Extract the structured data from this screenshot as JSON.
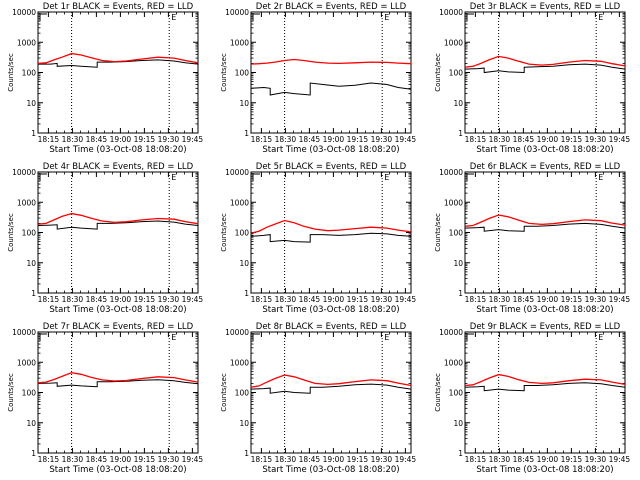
{
  "chart_data": [
    {
      "type": "line",
      "title": "Det 1r BLACK = Events, RED = LLD",
      "xlabel": "Start Time (03-Oct-08 18:08:20)",
      "ylabel": "Counts/sec",
      "x_ticks": [
        "18:15",
        "18:30",
        "18:45",
        "19:00",
        "19:15",
        "19:30",
        "19:45"
      ],
      "y_ticks": [
        "1",
        "10",
        "100",
        "1000",
        "10000"
      ],
      "ylim": [
        1,
        10000
      ],
      "xlim_minutes": [
        0,
        100
      ],
      "markers": [
        {
          "label": "E",
          "minute": 82
        }
      ],
      "vlines_minutes": [
        21,
        82
      ],
      "series": [
        {
          "name": "Events",
          "color": "#000000",
          "x": [
            0,
            8,
            12,
            12,
            21,
            27,
            37,
            37,
            45,
            55,
            65,
            75,
            85,
            92,
            100
          ],
          "y": [
            190,
            190,
            200,
            160,
            170,
            160,
            150,
            220,
            220,
            230,
            250,
            260,
            240,
            210,
            190
          ]
        },
        {
          "name": "LLD",
          "color": "#ff0000",
          "x": [
            0,
            5,
            10,
            15,
            21,
            27,
            33,
            40,
            48,
            55,
            65,
            75,
            85,
            92,
            100
          ],
          "y": [
            200,
            210,
            260,
            320,
            420,
            380,
            310,
            250,
            230,
            240,
            280,
            320,
            300,
            250,
            210
          ]
        }
      ]
    },
    {
      "type": "line",
      "title": "Det 2r BLACK = Events, RED = LLD",
      "xlabel": "Start Time (03-Oct-08 18:08:20)",
      "ylabel": "Counts/sec",
      "x_ticks": [
        "18:15",
        "18:30",
        "18:45",
        "19:00",
        "19:15",
        "19:30",
        "19:45"
      ],
      "y_ticks": [
        "1",
        "10",
        "100",
        "1000",
        "10000"
      ],
      "ylim": [
        1,
        10000
      ],
      "xlim_minutes": [
        0,
        100
      ],
      "markers": [
        {
          "label": "E",
          "minute": 82
        }
      ],
      "vlines_minutes": [
        21,
        82
      ],
      "series": [
        {
          "name": "Events",
          "color": "#000000",
          "x": [
            0,
            8,
            12,
            12,
            21,
            27,
            37,
            37,
            45,
            55,
            65,
            75,
            85,
            92,
            100
          ],
          "y": [
            30,
            32,
            30,
            18,
            22,
            20,
            18,
            45,
            40,
            35,
            38,
            45,
            40,
            32,
            28
          ]
        },
        {
          "name": "LLD",
          "color": "#ff0000",
          "x": [
            0,
            5,
            10,
            15,
            21,
            27,
            33,
            40,
            48,
            55,
            65,
            75,
            85,
            92,
            100
          ],
          "y": [
            190,
            195,
            205,
            220,
            250,
            270,
            250,
            220,
            205,
            200,
            210,
            220,
            215,
            205,
            195
          ]
        }
      ]
    },
    {
      "type": "line",
      "title": "Det 3r BLACK = Events, RED = LLD",
      "xlabel": "Start Time (03-Oct-08 18:08:20)",
      "ylabel": "Counts/sec",
      "x_ticks": [
        "18:15",
        "18:30",
        "18:45",
        "19:00",
        "19:15",
        "19:30",
        "19:45"
      ],
      "y_ticks": [
        "1",
        "10",
        "100",
        "1000",
        "10000"
      ],
      "ylim": [
        1,
        10000
      ],
      "xlim_minutes": [
        0,
        100
      ],
      "markers": [
        {
          "label": "E",
          "minute": 82
        }
      ],
      "vlines_minutes": [
        21,
        82
      ],
      "series": [
        {
          "name": "Events",
          "color": "#000000",
          "x": [
            0,
            8,
            12,
            12,
            21,
            27,
            37,
            37,
            45,
            55,
            65,
            75,
            85,
            92,
            100
          ],
          "y": [
            130,
            135,
            140,
            100,
            115,
            105,
            100,
            150,
            155,
            160,
            180,
            190,
            175,
            150,
            130
          ]
        },
        {
          "name": "LLD",
          "color": "#ff0000",
          "x": [
            0,
            5,
            10,
            15,
            21,
            27,
            33,
            40,
            48,
            55,
            65,
            75,
            85,
            92,
            100
          ],
          "y": [
            150,
            160,
            200,
            260,
            340,
            300,
            240,
            190,
            175,
            185,
            220,
            250,
            235,
            195,
            165
          ]
        }
      ]
    },
    {
      "type": "line",
      "title": "Det 4r BLACK = Events, RED = LLD",
      "xlabel": "Start Time (03-Oct-08 18:08:20)",
      "ylabel": "Counts/sec",
      "x_ticks": [
        "18:15",
        "18:30",
        "18:45",
        "19:00",
        "19:15",
        "19:30",
        "19:45"
      ],
      "y_ticks": [
        "1",
        "10",
        "100",
        "1000",
        "10000"
      ],
      "ylim": [
        1,
        10000
      ],
      "xlim_minutes": [
        0,
        100
      ],
      "markers": [
        {
          "label": "E",
          "minute": 82
        }
      ],
      "vlines_minutes": [
        21,
        82
      ],
      "series": [
        {
          "name": "Events",
          "color": "#000000",
          "x": [
            0,
            8,
            12,
            12,
            21,
            27,
            37,
            37,
            45,
            55,
            65,
            75,
            85,
            92,
            100
          ],
          "y": [
            170,
            175,
            180,
            130,
            150,
            140,
            130,
            200,
            200,
            210,
            230,
            240,
            220,
            190,
            170
          ]
        },
        {
          "name": "LLD",
          "color": "#ff0000",
          "x": [
            0,
            5,
            10,
            15,
            21,
            27,
            33,
            40,
            48,
            55,
            65,
            75,
            85,
            92,
            100
          ],
          "y": [
            190,
            200,
            260,
            340,
            420,
            370,
            300,
            240,
            215,
            225,
            260,
            290,
            275,
            230,
            195
          ]
        }
      ]
    },
    {
      "type": "line",
      "title": "Det 5r BLACK = Events, RED = LLD",
      "xlabel": "Start Time (03-Oct-08 18:08:20)",
      "ylabel": "Counts/sec",
      "x_ticks": [
        "18:15",
        "18:30",
        "18:45",
        "19:00",
        "19:15",
        "19:30",
        "19:45"
      ],
      "y_ticks": [
        "1",
        "10",
        "100",
        "1000",
        "10000"
      ],
      "ylim": [
        1,
        10000
      ],
      "xlim_minutes": [
        0,
        100
      ],
      "markers": [
        {
          "label": "E",
          "minute": 82
        }
      ],
      "vlines_minutes": [
        21,
        82
      ],
      "series": [
        {
          "name": "Events",
          "color": "#000000",
          "x": [
            0,
            8,
            12,
            12,
            21,
            27,
            37,
            37,
            45,
            55,
            65,
            75,
            85,
            92,
            100
          ],
          "y": [
            75,
            80,
            85,
            50,
            55,
            50,
            48,
            85,
            85,
            80,
            85,
            95,
            90,
            80,
            75
          ]
        },
        {
          "name": "LLD",
          "color": "#ff0000",
          "x": [
            0,
            5,
            10,
            15,
            21,
            27,
            33,
            40,
            48,
            55,
            65,
            75,
            85,
            92,
            100
          ],
          "y": [
            95,
            110,
            150,
            190,
            250,
            210,
            160,
            130,
            115,
            120,
            135,
            150,
            140,
            120,
            105
          ]
        }
      ]
    },
    {
      "type": "line",
      "title": "Det 6r BLACK = Events, RED = LLD",
      "xlabel": "Start Time (03-Oct-08 18:08:20)",
      "ylabel": "Counts/sec",
      "x_ticks": [
        "18:15",
        "18:30",
        "18:45",
        "19:00",
        "19:15",
        "19:30",
        "19:45"
      ],
      "y_ticks": [
        "1",
        "10",
        "100",
        "1000",
        "10000"
      ],
      "ylim": [
        1,
        10000
      ],
      "xlim_minutes": [
        0,
        100
      ],
      "markers": [
        {
          "label": "E",
          "minute": 82
        }
      ],
      "vlines_minutes": [
        21,
        82
      ],
      "series": [
        {
          "name": "Events",
          "color": "#000000",
          "x": [
            0,
            8,
            12,
            12,
            21,
            27,
            37,
            37,
            45,
            55,
            65,
            75,
            85,
            92,
            100
          ],
          "y": [
            140,
            145,
            150,
            110,
            125,
            115,
            110,
            160,
            160,
            170,
            190,
            200,
            185,
            160,
            140
          ]
        },
        {
          "name": "LLD",
          "color": "#ff0000",
          "x": [
            0,
            5,
            10,
            15,
            21,
            27,
            33,
            40,
            48,
            55,
            65,
            75,
            85,
            92,
            100
          ],
          "y": [
            160,
            170,
            220,
            290,
            380,
            330,
            260,
            200,
            185,
            195,
            230,
            260,
            245,
            205,
            175
          ]
        }
      ]
    },
    {
      "type": "line",
      "title": "Det 7r BLACK = Events, RED = LLD",
      "xlabel": "Start Time (03-Oct-08 18:08:20)",
      "ylabel": "Counts/sec",
      "x_ticks": [
        "18:15",
        "18:30",
        "18:45",
        "19:00",
        "19:15",
        "19:30",
        "19:45"
      ],
      "y_ticks": [
        "1",
        "10",
        "100",
        "1000",
        "10000"
      ],
      "ylim": [
        1,
        10000
      ],
      "xlim_minutes": [
        0,
        100
      ],
      "markers": [
        {
          "label": "E",
          "minute": 82
        }
      ],
      "vlines_minutes": [
        21,
        82
      ],
      "series": [
        {
          "name": "Events",
          "color": "#000000",
          "x": [
            0,
            8,
            12,
            12,
            21,
            27,
            37,
            37,
            45,
            55,
            65,
            75,
            85,
            92,
            100
          ],
          "y": [
            200,
            205,
            210,
            160,
            175,
            165,
            155,
            225,
            225,
            235,
            255,
            265,
            245,
            215,
            195
          ]
        },
        {
          "name": "LLD",
          "color": "#ff0000",
          "x": [
            0,
            5,
            10,
            15,
            21,
            27,
            33,
            40,
            48,
            55,
            65,
            75,
            85,
            92,
            100
          ],
          "y": [
            210,
            220,
            270,
            340,
            450,
            400,
            320,
            260,
            240,
            250,
            290,
            330,
            310,
            260,
            220
          ]
        }
      ]
    },
    {
      "type": "line",
      "title": "Det 8r BLACK = Events, RED = LLD",
      "xlabel": "Start Time (03-Oct-08 18:08:20)",
      "ylabel": "Counts/sec",
      "x_ticks": [
        "18:15",
        "18:30",
        "18:45",
        "19:00",
        "19:15",
        "19:30",
        "19:45"
      ],
      "y_ticks": [
        "1",
        "10",
        "100",
        "1000",
        "10000"
      ],
      "ylim": [
        1,
        10000
      ],
      "xlim_minutes": [
        0,
        100
      ],
      "markers": [
        {
          "label": "E",
          "minute": 82
        }
      ],
      "vlines_minutes": [
        21,
        82
      ],
      "series": [
        {
          "name": "Events",
          "color": "#000000",
          "x": [
            0,
            8,
            12,
            12,
            21,
            27,
            37,
            37,
            45,
            55,
            65,
            75,
            85,
            92,
            100
          ],
          "y": [
            130,
            135,
            140,
            95,
            110,
            100,
            95,
            150,
            150,
            160,
            180,
            190,
            175,
            150,
            130
          ]
        },
        {
          "name": "LLD",
          "color": "#ff0000",
          "x": [
            0,
            5,
            10,
            15,
            21,
            27,
            33,
            40,
            48,
            55,
            65,
            75,
            85,
            92,
            100
          ],
          "y": [
            150,
            165,
            220,
            290,
            380,
            330,
            260,
            200,
            185,
            195,
            230,
            260,
            245,
            205,
            170
          ]
        }
      ]
    },
    {
      "type": "line",
      "title": "Det 9r BLACK = Events, RED = LLD",
      "xlabel": "Start Time (03-Oct-08 18:08:20)",
      "ylabel": "Counts/sec",
      "x_ticks": [
        "18:15",
        "18:30",
        "18:45",
        "19:00",
        "19:15",
        "19:30",
        "19:45"
      ],
      "y_ticks": [
        "1",
        "10",
        "100",
        "1000",
        "10000"
      ],
      "ylim": [
        1,
        10000
      ],
      "xlim_minutes": [
        0,
        100
      ],
      "markers": [
        {
          "label": "E",
          "minute": 82
        }
      ],
      "vlines_minutes": [
        21,
        82
      ],
      "series": [
        {
          "name": "Events",
          "color": "#000000",
          "x": [
            0,
            8,
            12,
            12,
            21,
            27,
            37,
            37,
            45,
            55,
            65,
            75,
            85,
            92,
            100
          ],
          "y": [
            150,
            155,
            160,
            115,
            130,
            120,
            115,
            170,
            170,
            180,
            200,
            210,
            195,
            170,
            150
          ]
        },
        {
          "name": "LLD",
          "color": "#ff0000",
          "x": [
            0,
            5,
            10,
            15,
            21,
            27,
            33,
            40,
            48,
            55,
            65,
            75,
            85,
            92,
            100
          ],
          "y": [
            170,
            180,
            230,
            300,
            390,
            340,
            270,
            215,
            200,
            210,
            245,
            275,
            260,
            220,
            185
          ]
        }
      ]
    }
  ]
}
